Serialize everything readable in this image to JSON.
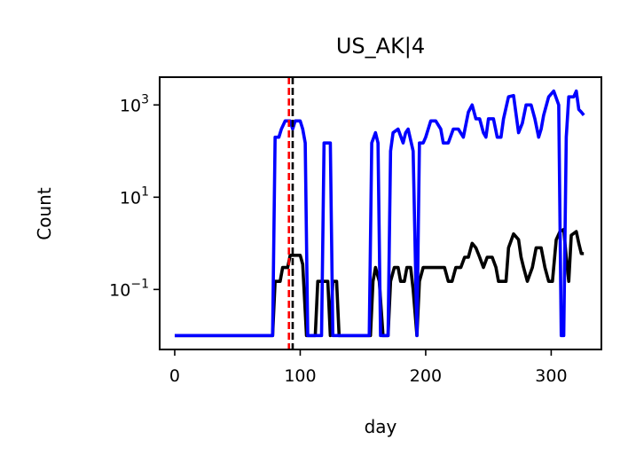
{
  "chart_data": {
    "type": "line",
    "title": "US_AK|4",
    "xlabel": "day",
    "ylabel": "Count",
    "xlim": [
      -12,
      340
    ],
    "ylim": [
      0.005,
      4000
    ],
    "yscale": "log",
    "grid": false,
    "x_ticks": [
      {
        "value": 0,
        "label": "0"
      },
      {
        "value": 100,
        "label": "100"
      },
      {
        "value": 200,
        "label": "200"
      },
      {
        "value": 300,
        "label": "300"
      }
    ],
    "y_ticks": [
      {
        "value": 1000,
        "base": "10",
        "exp": "3"
      },
      {
        "value": 10,
        "base": "10",
        "exp": "1"
      },
      {
        "value": 0.1,
        "base": "10",
        "exp": "−1"
      }
    ],
    "vlines": [
      {
        "x": 91,
        "color": "#ff0000",
        "style": "dashed"
      },
      {
        "x": 94,
        "color": "#000000",
        "style": "dashed"
      }
    ],
    "series": [
      {
        "color": "#000000",
        "points": [
          [
            0,
            0.01
          ],
          [
            78,
            0.01
          ],
          [
            80,
            0.15
          ],
          [
            84,
            0.15
          ],
          [
            86,
            0.3
          ],
          [
            90,
            0.3
          ],
          [
            92,
            0.55
          ],
          [
            100,
            0.55
          ],
          [
            102,
            0.35
          ],
          [
            105,
            0.01
          ],
          [
            112,
            0.01
          ],
          [
            114,
            0.15
          ],
          [
            122,
            0.15
          ],
          [
            124,
            0.01
          ],
          [
            126,
            0.15
          ],
          [
            129,
            0.15
          ],
          [
            131,
            0.01
          ],
          [
            156,
            0.01
          ],
          [
            158,
            0.15
          ],
          [
            160,
            0.3
          ],
          [
            163,
            0.15
          ],
          [
            166,
            0.01
          ],
          [
            170,
            0.01
          ],
          [
            172,
            0.15
          ],
          [
            175,
            0.3
          ],
          [
            178,
            0.3
          ],
          [
            180,
            0.15
          ],
          [
            183,
            0.15
          ],
          [
            185,
            0.3
          ],
          [
            188,
            0.3
          ],
          [
            190,
            0.1
          ],
          [
            193,
            0.01
          ],
          [
            195,
            0.15
          ],
          [
            198,
            0.3
          ],
          [
            215,
            0.3
          ],
          [
            218,
            0.15
          ],
          [
            221,
            0.15
          ],
          [
            224,
            0.3
          ],
          [
            228,
            0.3
          ],
          [
            231,
            0.5
          ],
          [
            234,
            0.5
          ],
          [
            237,
            1.0
          ],
          [
            240,
            0.8
          ],
          [
            243,
            0.5
          ],
          [
            246,
            0.3
          ],
          [
            249,
            0.5
          ],
          [
            253,
            0.5
          ],
          [
            256,
            0.3
          ],
          [
            258,
            0.15
          ],
          [
            264,
            0.15
          ],
          [
            266,
            0.8
          ],
          [
            270,
            1.6
          ],
          [
            274,
            1.2
          ],
          [
            276,
            0.5
          ],
          [
            278,
            0.3
          ],
          [
            281,
            0.15
          ],
          [
            285,
            0.3
          ],
          [
            288,
            0.8
          ],
          [
            292,
            0.8
          ],
          [
            295,
            0.3
          ],
          [
            298,
            0.15
          ],
          [
            301,
            0.15
          ],
          [
            304,
            1.2
          ],
          [
            307,
            1.8
          ],
          [
            310,
            2.0
          ],
          [
            312,
            0.5
          ],
          [
            314,
            0.15
          ],
          [
            316,
            1.5
          ],
          [
            320,
            1.8
          ],
          [
            322,
            1.0
          ],
          [
            324,
            0.6
          ],
          [
            326,
            0.6
          ]
        ]
      },
      {
        "color": "#0000ff",
        "points": [
          [
            0,
            0.01
          ],
          [
            78,
            0.01
          ],
          [
            80,
            200
          ],
          [
            83,
            200
          ],
          [
            85,
            300
          ],
          [
            88,
            450
          ],
          [
            92,
            450
          ],
          [
            94,
            300
          ],
          [
            96,
            450
          ],
          [
            100,
            450
          ],
          [
            102,
            300
          ],
          [
            104,
            150
          ],
          [
            106,
            0.01
          ],
          [
            108,
            0.01
          ],
          [
            115,
            0.01
          ],
          [
            117,
            0.01
          ],
          [
            119,
            150
          ],
          [
            124,
            150
          ],
          [
            126,
            0.01
          ],
          [
            131,
            0.01
          ],
          [
            155,
            0.01
          ],
          [
            157,
            150
          ],
          [
            160,
            250
          ],
          [
            162,
            150
          ],
          [
            164,
            0.01
          ],
          [
            170,
            0.01
          ],
          [
            172,
            100
          ],
          [
            174,
            250
          ],
          [
            178,
            300
          ],
          [
            182,
            150
          ],
          [
            184,
            250
          ],
          [
            186,
            300
          ],
          [
            190,
            100
          ],
          [
            193,
            0.01
          ],
          [
            195,
            150
          ],
          [
            198,
            150
          ],
          [
            200,
            200
          ],
          [
            204,
            450
          ],
          [
            208,
            450
          ],
          [
            212,
            300
          ],
          [
            214,
            150
          ],
          [
            218,
            150
          ],
          [
            222,
            300
          ],
          [
            226,
            300
          ],
          [
            230,
            200
          ],
          [
            234,
            700
          ],
          [
            237,
            1000
          ],
          [
            240,
            500
          ],
          [
            243,
            500
          ],
          [
            246,
            250
          ],
          [
            248,
            200
          ],
          [
            250,
            500
          ],
          [
            254,
            500
          ],
          [
            257,
            200
          ],
          [
            260,
            200
          ],
          [
            262,
            500
          ],
          [
            266,
            1500
          ],
          [
            270,
            1600
          ],
          [
            274,
            250
          ],
          [
            277,
            400
          ],
          [
            280,
            1000
          ],
          [
            284,
            1000
          ],
          [
            287,
            500
          ],
          [
            290,
            200
          ],
          [
            292,
            300
          ],
          [
            294,
            600
          ],
          [
            298,
            1500
          ],
          [
            302,
            2000
          ],
          [
            306,
            1000
          ],
          [
            308,
            0.01
          ],
          [
            310,
            0.01
          ],
          [
            312,
            200
          ],
          [
            314,
            1500
          ],
          [
            318,
            1500
          ],
          [
            320,
            2000
          ],
          [
            322,
            800
          ],
          [
            324,
            700
          ],
          [
            326,
            600
          ]
        ]
      }
    ]
  }
}
